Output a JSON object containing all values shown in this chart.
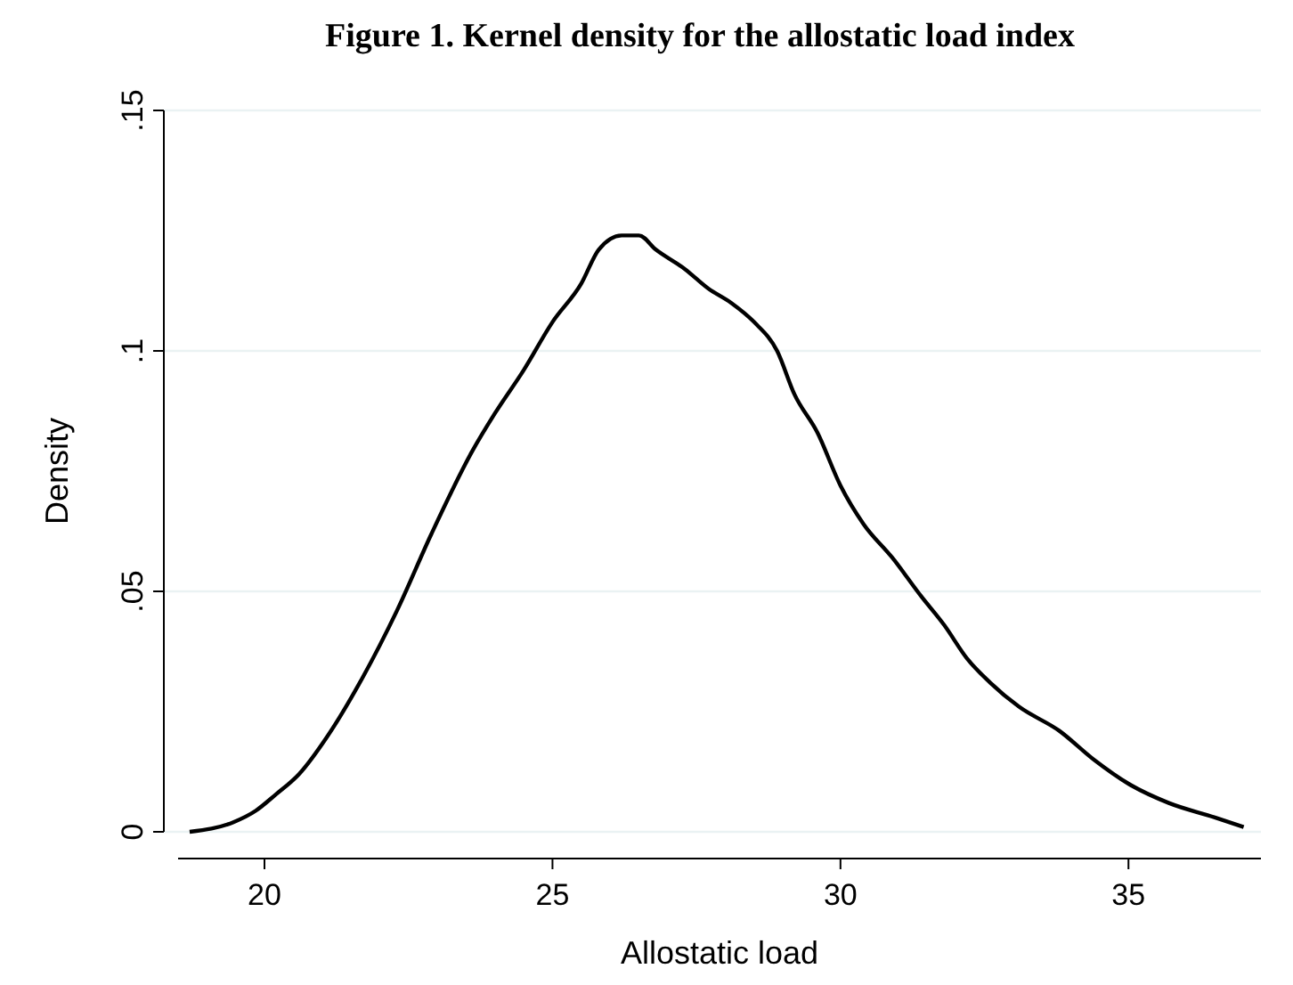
{
  "chart_data": {
    "type": "line",
    "title": "Figure 1. Kernel density for the allostatic load index",
    "xlabel": "Allostatic load",
    "ylabel": "Density",
    "x": [
      18.7,
      19.46,
      19.85,
      20.2,
      20.6,
      21.1,
      21.7,
      22.3,
      22.9,
      23.6,
      24.0,
      24.5,
      25.0,
      25.5,
      25.8,
      26.2,
      26.5,
      26.8,
      27.3,
      27.7,
      28.1,
      28.5,
      28.9,
      29.2,
      29.6,
      30.0,
      30.4,
      30.9,
      31.4,
      31.8,
      32.2,
      32.6,
      33.1,
      33.8,
      34.4,
      35.0,
      35.7,
      36.5,
      37.0
    ],
    "series": [
      {
        "color": "#000000",
        "values": [
          0.0,
          0.002,
          0.0044,
          0.0078,
          0.012,
          0.02,
          0.032,
          0.046,
          0.062,
          0.079,
          0.087,
          0.096,
          0.106,
          0.114,
          0.121,
          0.124,
          0.124,
          0.121,
          0.117,
          0.113,
          0.11,
          0.106,
          0.1,
          0.091,
          0.083,
          0.072,
          0.064,
          0.057,
          0.049,
          0.043,
          0.036,
          0.031,
          0.026,
          0.021,
          0.015,
          0.01,
          0.006,
          0.003,
          0.001
        ]
      }
    ],
    "xlim": [
      18.5,
      37.3
    ],
    "xticks": [
      20,
      25,
      30,
      35
    ],
    "ylim": [
      0,
      0.15
    ],
    "yticks": [
      {
        "value": 0,
        "label": "0"
      },
      {
        "value": 0.05,
        "label": ".05"
      },
      {
        "value": 0.1,
        "label": ".1"
      },
      {
        "value": 0.15,
        "label": ".15"
      }
    ],
    "grid": "y",
    "marker": "none",
    "line_style": "solid"
  }
}
